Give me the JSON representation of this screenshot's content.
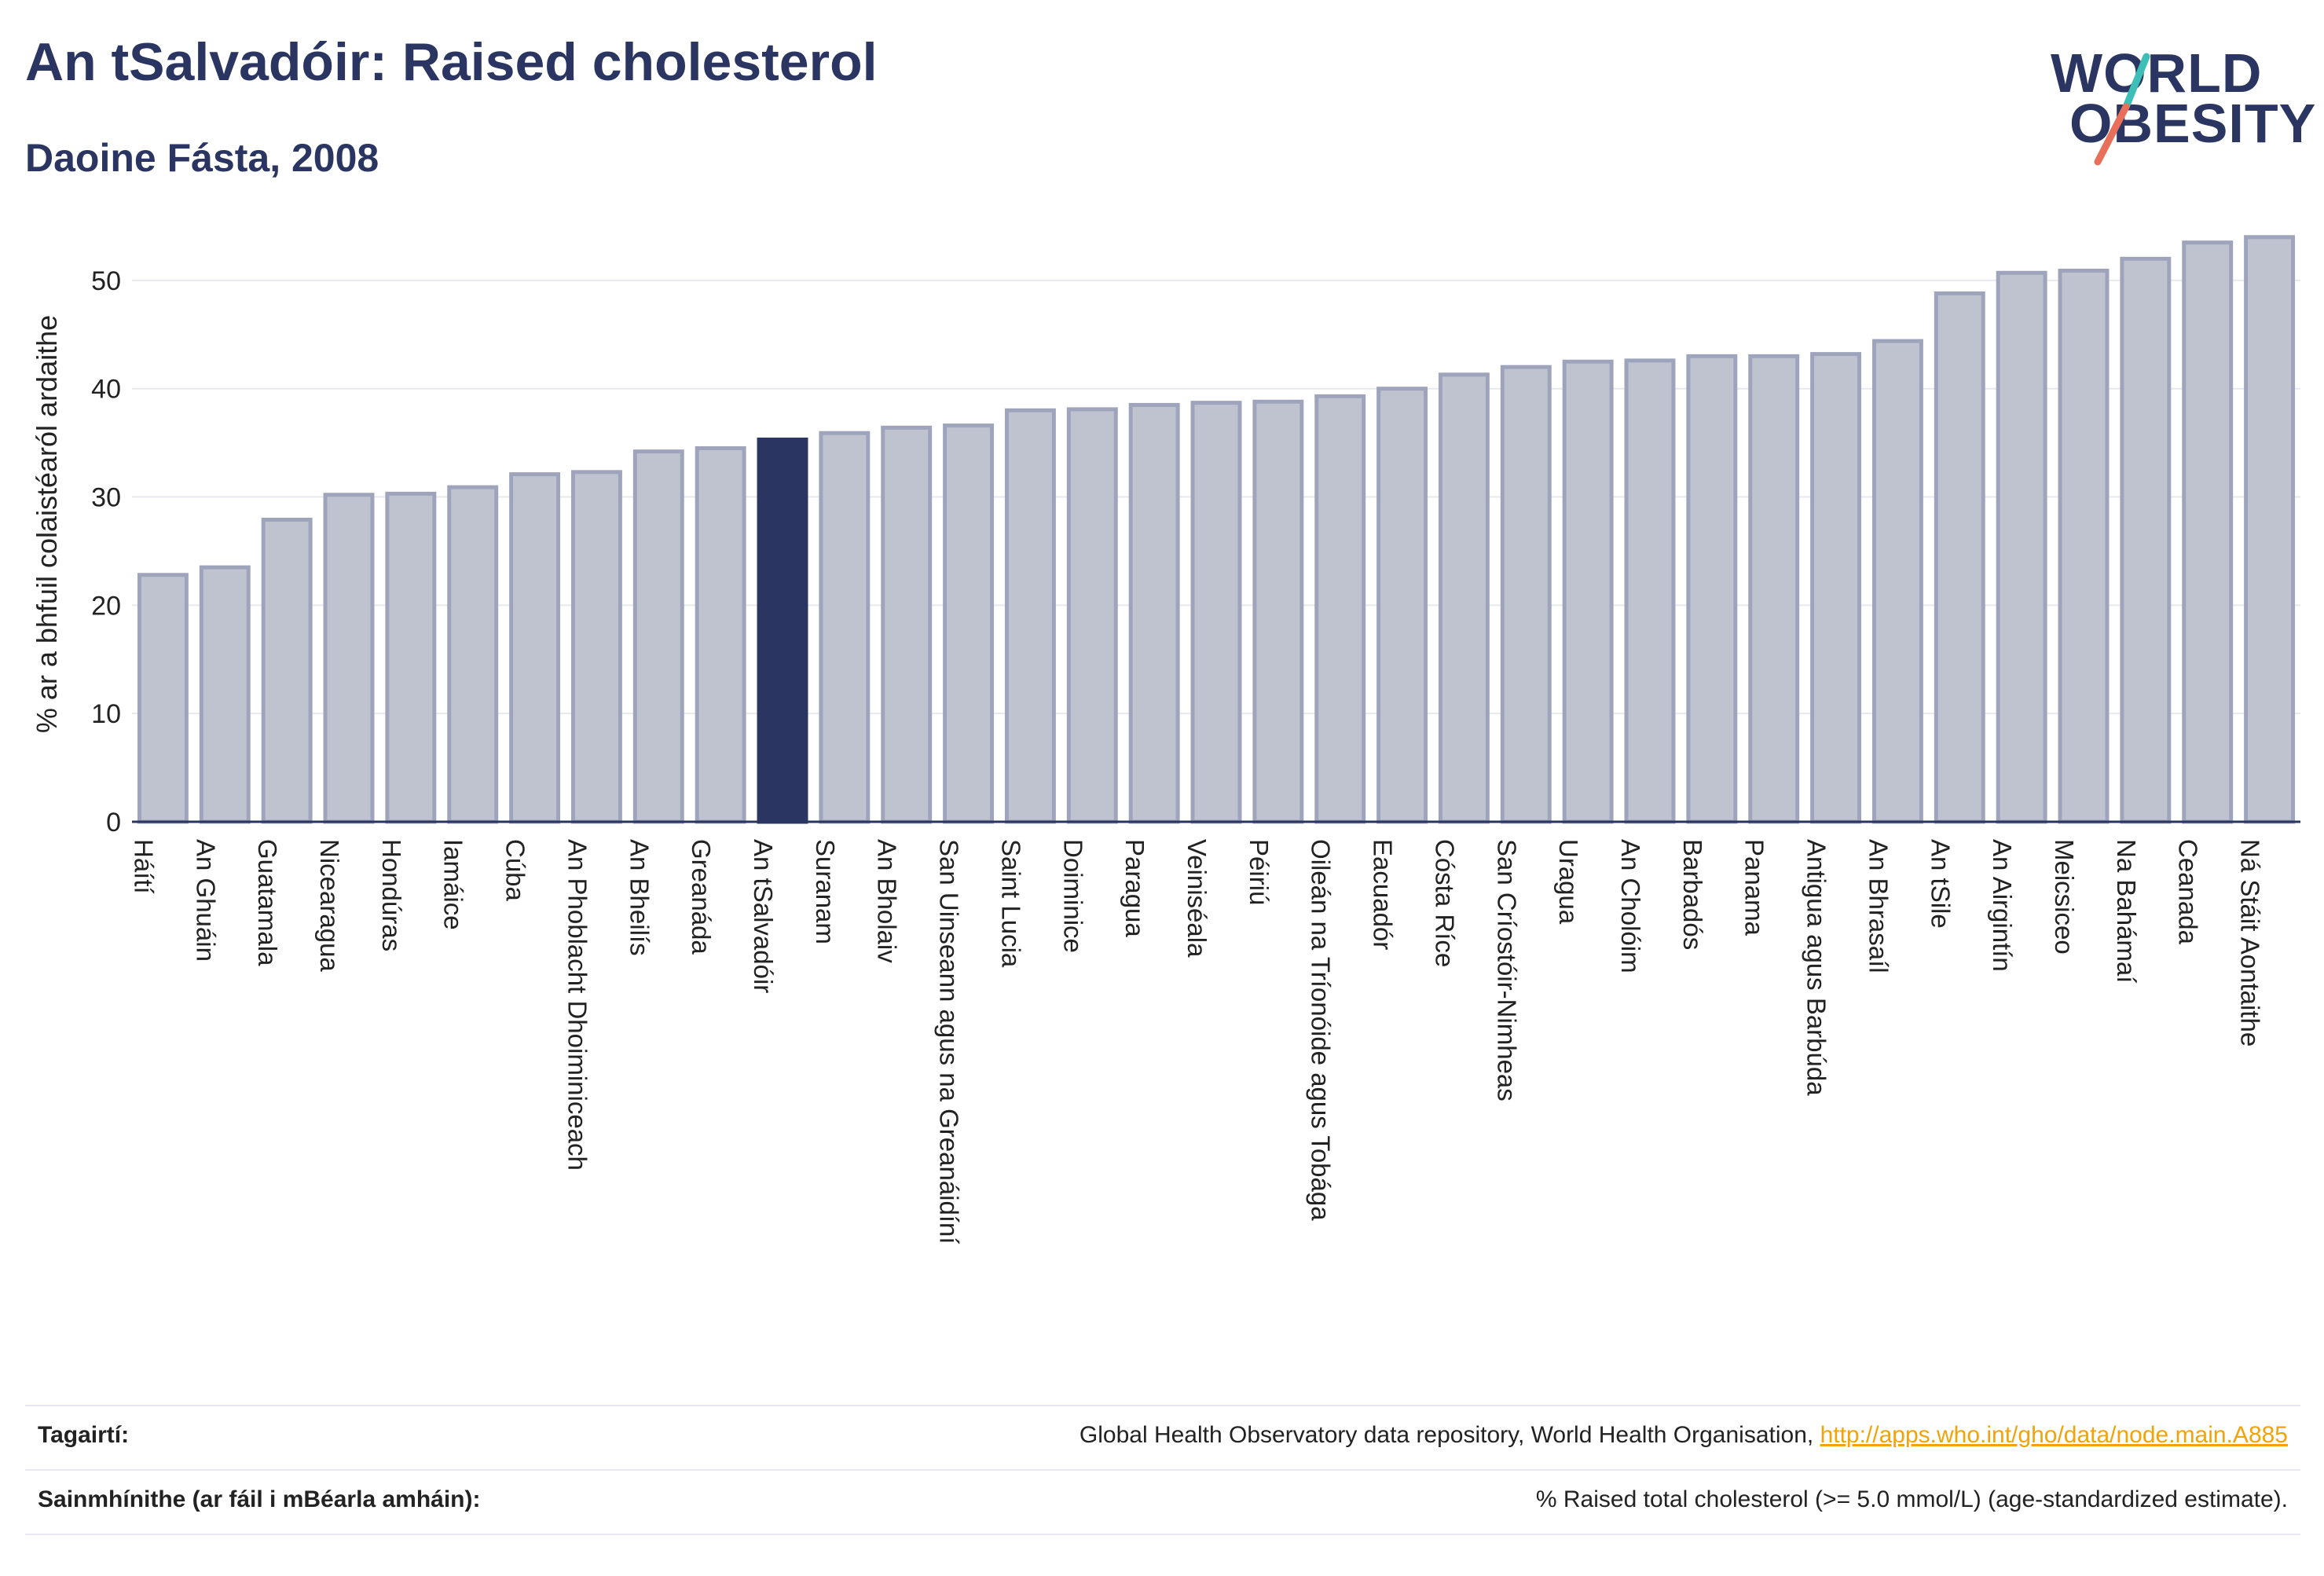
{
  "header": {
    "title": "An tSalvadóir: Raised cholesterol",
    "subtitle": "Daoine Fásta, 2008"
  },
  "logo": {
    "line1": "WORLD",
    "line2": "OBESITY",
    "accent_colors": [
      "#3bbfb6",
      "#e8705a"
    ]
  },
  "colors": {
    "bar": "#bfc3cf",
    "bar_outline": "#9ea4bc",
    "highlight": "#2a3561",
    "grid": "#e8e9ef",
    "axis": "#2a3561"
  },
  "chart_data": {
    "type": "bar",
    "ylabel": "% ar a bhfuil colaistéaról ardaithe",
    "ylim": [
      0,
      55
    ],
    "yticks": [
      0,
      10,
      20,
      30,
      40,
      50
    ],
    "grid": true,
    "highlight_category": "An tSalvadóir",
    "categories": [
      "Háítí",
      "An Ghuáin",
      "Guatamala",
      "Nicearagua",
      "Hondúras",
      "Iamáice",
      "Cúba",
      "An Phoblacht Dhoiminiceach",
      "An Bheilís",
      "Greanáda",
      "An tSalvadóir",
      "Suranam",
      "An Bholaiv",
      "San Uinseann agus na Greanáidíní",
      "Saint Lucia",
      "Doiminice",
      "Paragua",
      "Veiniséala",
      "Péiriú",
      "Oileán na Tríonóide agus Tobága",
      "Eacuadór",
      "Cósta Ríce",
      "San Críostóir-Nimheas",
      "Uragua",
      "An Cholóim",
      "Barbadós",
      "Panama",
      "Antigua agus Barbúda",
      "An Bhrasaíl",
      "An tSile",
      "An Airgintín",
      "Meicsiceo",
      "Na Bahámaí",
      "Ceanada",
      "Ná Stáit Aontaithe"
    ],
    "values": [
      22.8,
      23.5,
      27.9,
      30.2,
      30.3,
      30.9,
      32.1,
      32.3,
      34.2,
      34.5,
      35.3,
      35.9,
      36.4,
      36.6,
      38.0,
      38.1,
      38.5,
      38.7,
      38.8,
      39.3,
      40.0,
      41.3,
      42.0,
      42.5,
      42.6,
      43.0,
      43.0,
      43.2,
      44.4,
      48.8,
      50.7,
      50.9,
      52.0,
      53.5,
      54.0
    ]
  },
  "footer": {
    "references_label": "Tagairtí:",
    "references_text": "Global Health Observatory data repository, World Health Organisation, ",
    "references_link": "http://apps.who.int/gho/data/node.main.A885",
    "definitions_label": "Sainmhínithe (ar fáil i mBéarla amháin):",
    "definitions_text": "% Raised total cholesterol (>= 5.0 mmol/L) (age-standardized estimate)."
  }
}
